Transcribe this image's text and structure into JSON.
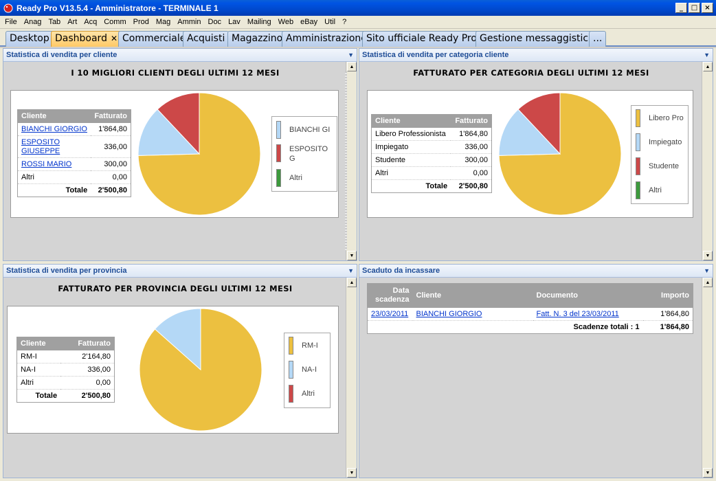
{
  "window": {
    "title": "Ready Pro V13.5.4 - Amministratore - TERMINALE 1"
  },
  "menu": [
    "File",
    "Anag",
    "Tab",
    "Art",
    "Acq",
    "Comm",
    "Prod",
    "Mag",
    "Ammin",
    "Doc",
    "Lav",
    "Mailing",
    "Web",
    "eBay",
    "Util",
    "?"
  ],
  "tabs": [
    {
      "label": "Desktop"
    },
    {
      "label": "Dashboard"
    },
    {
      "label": "Commerciale"
    },
    {
      "label": "Acquisti"
    },
    {
      "label": "Magazzino"
    },
    {
      "label": "Amministrazione"
    },
    {
      "label": "Sito ufficiale Ready Pro"
    },
    {
      "label": "Gestione messaggistica"
    },
    {
      "label": "..."
    }
  ],
  "colors": {
    "yellow": "#ecc040",
    "blue": "#b4d8f6",
    "red": "#cc4848",
    "green": "#3d9a3d"
  },
  "panels": {
    "clienti": {
      "header": "Statistica di vendita per cliente",
      "title": "I 10 MIGLIORI CLIENTI DEGLI ULTIMI 12 MESI",
      "col_cliente": "Cliente",
      "col_fatturato": "Fatturato",
      "rows": [
        {
          "name": "BIANCHI GIORGIO",
          "value": "1'864,80"
        },
        {
          "name": "ESPOSITO GIUSEPPE",
          "value": "336,00"
        },
        {
          "name": "ROSSI MARIO",
          "value": "300,00"
        },
        {
          "name": "Altri",
          "value": "0,00"
        }
      ],
      "total_label": "Totale",
      "total_value": "2'500,80",
      "legend": [
        "BIANCHI GI",
        "ESPOSITO\nG",
        "Altri"
      ]
    },
    "categoria": {
      "header": "Statistica di vendita per categoria cliente",
      "title": "FATTURATO PER CATEGORIA DEGLI ULTIMI 12 MESI",
      "col_cliente": "Cliente",
      "col_fatturato": "Fatturato",
      "rows": [
        {
          "name": "Libero Professionista",
          "value": "1'864,80"
        },
        {
          "name": "Impiegato",
          "value": "336,00"
        },
        {
          "name": "Studente",
          "value": "300,00"
        },
        {
          "name": "Altri",
          "value": "0,00"
        }
      ],
      "total_label": "Totale",
      "total_value": "2'500,80",
      "legend": [
        "Libero Pro",
        "Impiegato",
        "Studente",
        "Altri"
      ]
    },
    "provincia": {
      "header": "Statistica di vendita per provincia",
      "title": "FATTURATO PER PROVINCIA DEGLI ULTIMI 12 MESI",
      "col_cliente": "Cliente",
      "col_fatturato": "Fatturato",
      "rows": [
        {
          "name": "RM-I",
          "value": "2'164,80"
        },
        {
          "name": "NA-I",
          "value": "336,00"
        },
        {
          "name": "Altri",
          "value": "0,00"
        }
      ],
      "total_label": "Totale",
      "total_value": "2'500,80",
      "legend": [
        "RM-I",
        "NA-I",
        "Altri"
      ]
    },
    "scaduto": {
      "header": "Scaduto da incassare",
      "col_data_1": "Data",
      "col_data_2": "scadenza",
      "col_cliente": "Cliente",
      "col_documento": "Documento",
      "col_importo": "Importo",
      "rows": [
        {
          "data": "23/03/2011",
          "cliente": "BIANCHI GIORGIO",
          "documento": "Fatt. N. 3 del 23/03/2011",
          "importo": "1'864,80"
        }
      ],
      "total_label": "Scadenze totali : 1",
      "total_value": "1'864,80"
    }
  },
  "chart_data": [
    {
      "type": "pie",
      "title": "I 10 MIGLIORI CLIENTI DEGLI ULTIMI 12 MESI",
      "categories": [
        "BIANCHI GIORGIO",
        "ESPOSITO GIUSEPPE",
        "ROSSI MARIO",
        "Altri"
      ],
      "values": [
        1864.8,
        336.0,
        300.0,
        0.0
      ]
    },
    {
      "type": "pie",
      "title": "FATTURATO PER CATEGORIA DEGLI ULTIMI 12 MESI",
      "categories": [
        "Libero Professionista",
        "Impiegato",
        "Studente",
        "Altri"
      ],
      "values": [
        1864.8,
        336.0,
        300.0,
        0.0
      ]
    },
    {
      "type": "pie",
      "title": "FATTURATO PER PROVINCIA DEGLI ULTIMI 12 MESI",
      "categories": [
        "RM-I",
        "NA-I",
        "Altri"
      ],
      "values": [
        2164.8,
        336.0,
        0.0
      ]
    }
  ]
}
